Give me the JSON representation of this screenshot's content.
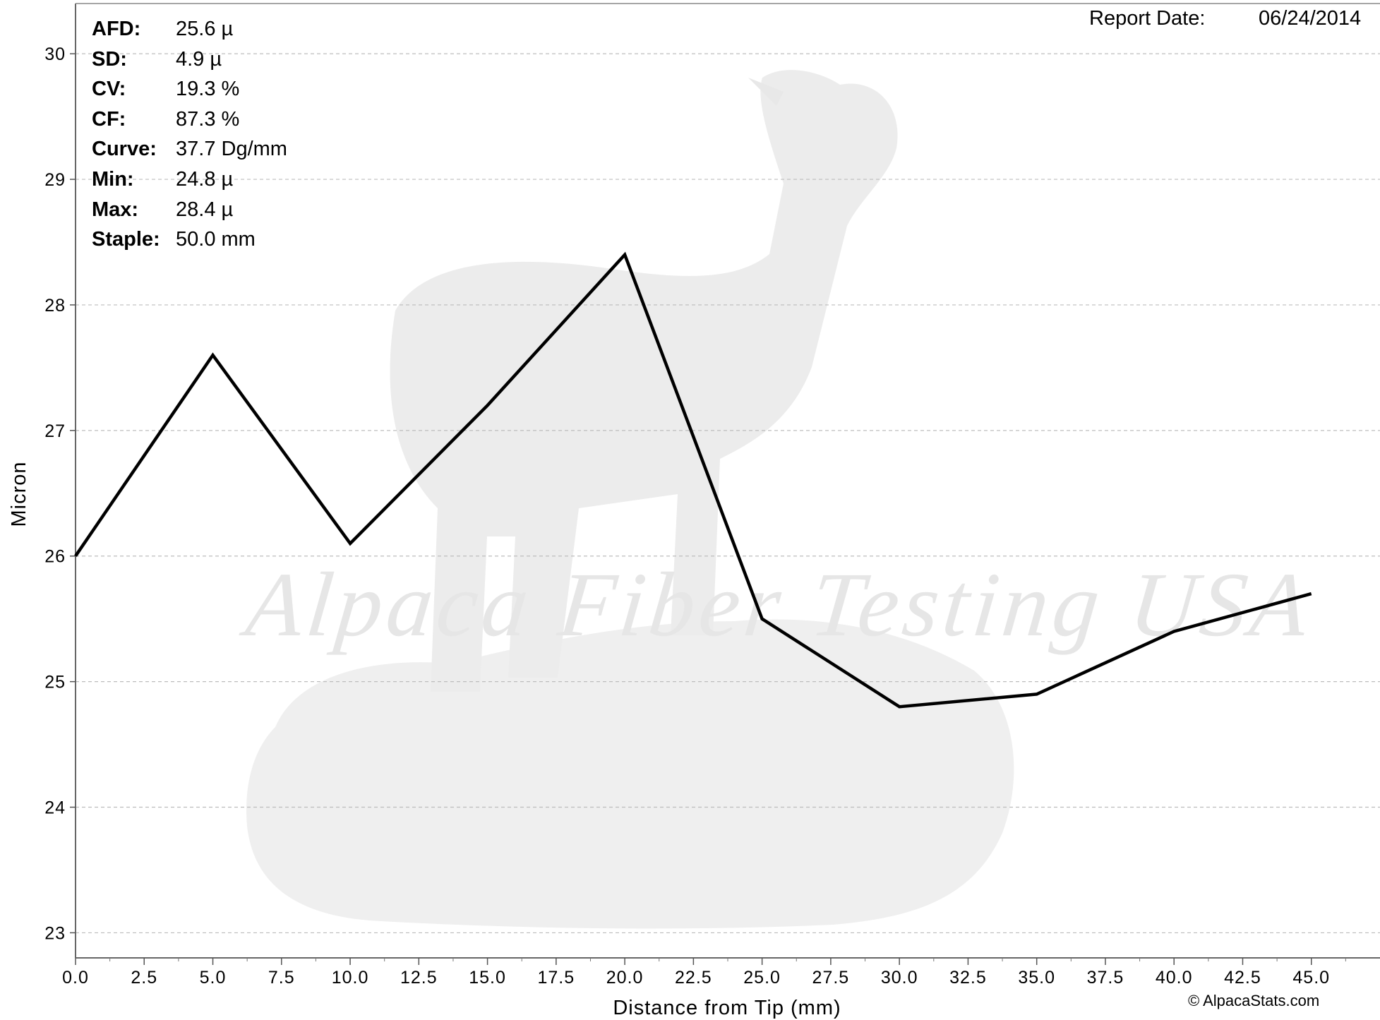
{
  "stats": [
    {
      "key": "AFD:",
      "value": "25.6 µ"
    },
    {
      "key": "SD:",
      "value": "4.9 µ"
    },
    {
      "key": "CV:",
      "value": "19.3 %"
    },
    {
      "key": "CF:",
      "value": "87.3 %"
    },
    {
      "key": "Curve:",
      "value": "37.7 Dg/mm"
    },
    {
      "key": "Min:",
      "value": "24.8 µ"
    },
    {
      "key": "Max:",
      "value": "28.4 µ"
    },
    {
      "key": "Staple:",
      "value": "50.0 mm"
    }
  ],
  "report": {
    "label": "Report Date:",
    "date": "06/24/2014"
  },
  "watermark": "Alpaca Fiber Testing USA",
  "copyright": "© AlpacaStats.com",
  "colors": {
    "line": "#000000",
    "grid": "#bdbdbd",
    "watermark": "#e6e6e6"
  },
  "chart_data": {
    "type": "line",
    "title": "",
    "xlabel": "Distance from Tip (mm)",
    "ylabel": "Micron",
    "xlim": [
      0,
      47.5
    ],
    "ylim": [
      22.8,
      30.4
    ],
    "grid": "horizontal-dashed",
    "x_ticks": [
      "0.0",
      "2.5",
      "5.0",
      "7.5",
      "10.0",
      "12.5",
      "15.0",
      "17.5",
      "20.0",
      "22.5",
      "25.0",
      "27.5",
      "30.0",
      "32.5",
      "35.0",
      "37.5",
      "40.0",
      "42.5",
      "45.0"
    ],
    "y_ticks": [
      "23",
      "24",
      "25",
      "26",
      "27",
      "28",
      "29",
      "30"
    ],
    "series": [
      {
        "x": [
          0,
          5,
          10,
          15,
          20,
          25,
          30,
          35,
          40,
          45
        ],
        "y": [
          26.0,
          27.6,
          26.1,
          27.2,
          28.4,
          25.5,
          24.8,
          24.9,
          25.4,
          25.7
        ]
      }
    ]
  }
}
